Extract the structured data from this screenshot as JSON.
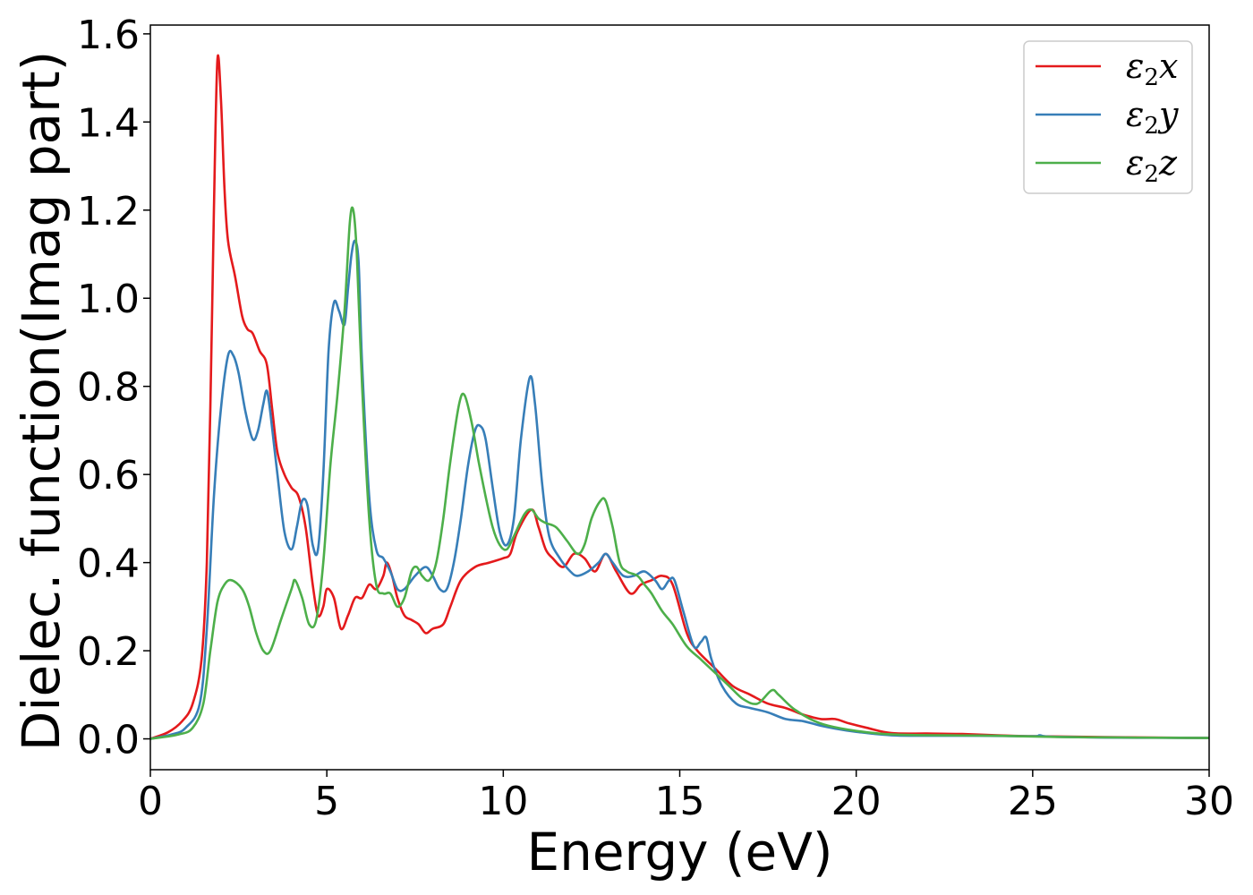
{
  "chart_data": {
    "type": "line",
    "xlabel": "Energy (eV)",
    "ylabel": "Dielec. function(Imag part)",
    "xlim": [
      0,
      30
    ],
    "ylim": [
      -0.07,
      1.62
    ],
    "xticks": [
      0,
      5,
      10,
      15,
      20,
      25,
      30
    ],
    "xtick_labels": [
      "0",
      "5",
      "10",
      "15",
      "20",
      "25",
      "30"
    ],
    "yticks": [
      0.0,
      0.2,
      0.4,
      0.6,
      0.8,
      1.0,
      1.2,
      1.4,
      1.6
    ],
    "ytick_labels": [
      "0.0",
      "0.2",
      "0.4",
      "0.6",
      "0.8",
      "1.0",
      "1.2",
      "1.4",
      "1.6"
    ],
    "grid": false,
    "legend_position": "top-right",
    "series": [
      {
        "name": "ε₂x",
        "label_base": "ε",
        "label_sub": "2",
        "label_suffix": "x",
        "color": "#e41a1c",
        "points": [
          [
            0,
            0.0
          ],
          [
            0.5,
            0.015
          ],
          [
            0.9,
            0.04
          ],
          [
            1.2,
            0.08
          ],
          [
            1.45,
            0.18
          ],
          [
            1.6,
            0.4
          ],
          [
            1.7,
            0.75
          ],
          [
            1.8,
            1.2
          ],
          [
            1.9,
            1.54
          ],
          [
            2.0,
            1.45
          ],
          [
            2.1,
            1.25
          ],
          [
            2.2,
            1.13
          ],
          [
            2.4,
            1.05
          ],
          [
            2.6,
            0.96
          ],
          [
            2.75,
            0.93
          ],
          [
            2.9,
            0.92
          ],
          [
            3.1,
            0.88
          ],
          [
            3.3,
            0.85
          ],
          [
            3.45,
            0.75
          ],
          [
            3.6,
            0.65
          ],
          [
            3.8,
            0.6
          ],
          [
            4.0,
            0.57
          ],
          [
            4.2,
            0.55
          ],
          [
            4.4,
            0.48
          ],
          [
            4.6,
            0.35
          ],
          [
            4.75,
            0.28
          ],
          [
            4.9,
            0.3
          ],
          [
            5.0,
            0.34
          ],
          [
            5.2,
            0.32
          ],
          [
            5.4,
            0.25
          ],
          [
            5.6,
            0.28
          ],
          [
            5.8,
            0.32
          ],
          [
            6.0,
            0.32
          ],
          [
            6.2,
            0.35
          ],
          [
            6.4,
            0.34
          ],
          [
            6.6,
            0.37
          ],
          [
            6.7,
            0.4
          ],
          [
            6.85,
            0.37
          ],
          [
            7.0,
            0.32
          ],
          [
            7.2,
            0.28
          ],
          [
            7.4,
            0.27
          ],
          [
            7.6,
            0.26
          ],
          [
            7.8,
            0.24
          ],
          [
            8.0,
            0.25
          ],
          [
            8.3,
            0.26
          ],
          [
            8.5,
            0.3
          ],
          [
            8.8,
            0.36
          ],
          [
            9.2,
            0.39
          ],
          [
            9.6,
            0.4
          ],
          [
            10.0,
            0.41
          ],
          [
            10.2,
            0.42
          ],
          [
            10.4,
            0.47
          ],
          [
            10.8,
            0.52
          ],
          [
            11.0,
            0.48
          ],
          [
            11.2,
            0.43
          ],
          [
            11.4,
            0.41
          ],
          [
            11.7,
            0.39
          ],
          [
            12.0,
            0.42
          ],
          [
            12.3,
            0.41
          ],
          [
            12.6,
            0.38
          ],
          [
            12.9,
            0.42
          ],
          [
            13.2,
            0.38
          ],
          [
            13.6,
            0.33
          ],
          [
            13.9,
            0.35
          ],
          [
            14.2,
            0.36
          ],
          [
            14.5,
            0.37
          ],
          [
            14.8,
            0.35
          ],
          [
            15.2,
            0.24
          ],
          [
            15.5,
            0.2
          ],
          [
            16.0,
            0.16
          ],
          [
            16.5,
            0.12
          ],
          [
            17.0,
            0.1
          ],
          [
            17.5,
            0.08
          ],
          [
            18.0,
            0.07
          ],
          [
            18.5,
            0.055
          ],
          [
            19.0,
            0.045
          ],
          [
            19.4,
            0.045
          ],
          [
            19.8,
            0.035
          ],
          [
            20.3,
            0.025
          ],
          [
            21.0,
            0.013
          ],
          [
            22.0,
            0.012
          ],
          [
            23.0,
            0.011
          ],
          [
            24.0,
            0.008
          ],
          [
            25.0,
            0.006
          ],
          [
            27.0,
            0.004
          ],
          [
            30.0,
            0.002
          ]
        ]
      },
      {
        "name": "ε₂y",
        "label_base": "ε",
        "label_sub": "2",
        "label_suffix": "y",
        "color": "#377eb8",
        "points": [
          [
            0,
            0.0
          ],
          [
            0.6,
            0.01
          ],
          [
            1.0,
            0.025
          ],
          [
            1.4,
            0.08
          ],
          [
            1.6,
            0.25
          ],
          [
            1.8,
            0.55
          ],
          [
            2.0,
            0.75
          ],
          [
            2.2,
            0.87
          ],
          [
            2.35,
            0.87
          ],
          [
            2.5,
            0.83
          ],
          [
            2.7,
            0.74
          ],
          [
            2.9,
            0.68
          ],
          [
            3.05,
            0.7
          ],
          [
            3.2,
            0.76
          ],
          [
            3.3,
            0.79
          ],
          [
            3.4,
            0.74
          ],
          [
            3.6,
            0.6
          ],
          [
            3.8,
            0.47
          ],
          [
            4.0,
            0.43
          ],
          [
            4.15,
            0.48
          ],
          [
            4.3,
            0.54
          ],
          [
            4.45,
            0.53
          ],
          [
            4.6,
            0.44
          ],
          [
            4.75,
            0.43
          ],
          [
            4.9,
            0.6
          ],
          [
            5.05,
            0.88
          ],
          [
            5.2,
            0.99
          ],
          [
            5.35,
            0.97
          ],
          [
            5.5,
            0.94
          ],
          [
            5.6,
            1.02
          ],
          [
            5.7,
            1.1
          ],
          [
            5.8,
            1.13
          ],
          [
            5.9,
            1.08
          ],
          [
            6.0,
            0.85
          ],
          [
            6.2,
            0.55
          ],
          [
            6.4,
            0.43
          ],
          [
            6.6,
            0.41
          ],
          [
            6.8,
            0.38
          ],
          [
            7.0,
            0.34
          ],
          [
            7.2,
            0.34
          ],
          [
            7.5,
            0.37
          ],
          [
            7.8,
            0.39
          ],
          [
            8.0,
            0.37
          ],
          [
            8.2,
            0.34
          ],
          [
            8.4,
            0.34
          ],
          [
            8.6,
            0.4
          ],
          [
            8.8,
            0.5
          ],
          [
            9.0,
            0.62
          ],
          [
            9.2,
            0.7
          ],
          [
            9.35,
            0.71
          ],
          [
            9.5,
            0.68
          ],
          [
            9.7,
            0.57
          ],
          [
            9.9,
            0.47
          ],
          [
            10.1,
            0.44
          ],
          [
            10.3,
            0.5
          ],
          [
            10.5,
            0.68
          ],
          [
            10.75,
            0.82
          ],
          [
            10.9,
            0.76
          ],
          [
            11.1,
            0.58
          ],
          [
            11.3,
            0.46
          ],
          [
            11.6,
            0.41
          ],
          [
            11.9,
            0.38
          ],
          [
            12.1,
            0.37
          ],
          [
            12.4,
            0.38
          ],
          [
            12.7,
            0.4
          ],
          [
            12.9,
            0.42
          ],
          [
            13.1,
            0.4
          ],
          [
            13.4,
            0.37
          ],
          [
            13.7,
            0.37
          ],
          [
            14.0,
            0.38
          ],
          [
            14.3,
            0.36
          ],
          [
            14.5,
            0.34
          ],
          [
            14.7,
            0.36
          ],
          [
            14.85,
            0.36
          ],
          [
            15.1,
            0.29
          ],
          [
            15.4,
            0.21
          ],
          [
            15.6,
            0.22
          ],
          [
            15.75,
            0.23
          ],
          [
            15.9,
            0.18
          ],
          [
            16.2,
            0.12
          ],
          [
            16.6,
            0.08
          ],
          [
            17.0,
            0.07
          ],
          [
            17.5,
            0.06
          ],
          [
            18.0,
            0.045
          ],
          [
            18.5,
            0.04
          ],
          [
            19.0,
            0.03
          ],
          [
            19.5,
            0.022
          ],
          [
            20.0,
            0.016
          ],
          [
            21.0,
            0.008
          ],
          [
            22.0,
            0.007
          ],
          [
            23.5,
            0.007
          ],
          [
            25.0,
            0.006
          ],
          [
            25.2,
            0.008
          ],
          [
            25.5,
            0.005
          ],
          [
            27.0,
            0.003
          ],
          [
            30.0,
            0.002
          ]
        ]
      },
      {
        "name": "ε₂z",
        "label_base": "ε",
        "label_sub": "2",
        "label_suffix": "z",
        "color": "#4daf4a",
        "points": [
          [
            0,
            0.0
          ],
          [
            0.8,
            0.01
          ],
          [
            1.2,
            0.025
          ],
          [
            1.5,
            0.08
          ],
          [
            1.7,
            0.2
          ],
          [
            1.9,
            0.31
          ],
          [
            2.1,
            0.35
          ],
          [
            2.3,
            0.36
          ],
          [
            2.6,
            0.34
          ],
          [
            2.8,
            0.3
          ],
          [
            3.0,
            0.24
          ],
          [
            3.2,
            0.2
          ],
          [
            3.4,
            0.2
          ],
          [
            3.7,
            0.27
          ],
          [
            4.0,
            0.34
          ],
          [
            4.1,
            0.36
          ],
          [
            4.3,
            0.32
          ],
          [
            4.5,
            0.26
          ],
          [
            4.7,
            0.27
          ],
          [
            4.9,
            0.4
          ],
          [
            5.1,
            0.62
          ],
          [
            5.3,
            0.78
          ],
          [
            5.5,
            0.97
          ],
          [
            5.65,
            1.17
          ],
          [
            5.75,
            1.2
          ],
          [
            5.85,
            1.1
          ],
          [
            6.0,
            0.8
          ],
          [
            6.2,
            0.5
          ],
          [
            6.4,
            0.35
          ],
          [
            6.6,
            0.33
          ],
          [
            6.8,
            0.33
          ],
          [
            7.0,
            0.3
          ],
          [
            7.2,
            0.32
          ],
          [
            7.4,
            0.38
          ],
          [
            7.55,
            0.39
          ],
          [
            7.7,
            0.37
          ],
          [
            7.9,
            0.36
          ],
          [
            8.1,
            0.4
          ],
          [
            8.3,
            0.5
          ],
          [
            8.5,
            0.63
          ],
          [
            8.75,
            0.76
          ],
          [
            8.9,
            0.78
          ],
          [
            9.1,
            0.72
          ],
          [
            9.3,
            0.63
          ],
          [
            9.5,
            0.55
          ],
          [
            9.7,
            0.48
          ],
          [
            9.9,
            0.44
          ],
          [
            10.1,
            0.43
          ],
          [
            10.3,
            0.46
          ],
          [
            10.6,
            0.51
          ],
          [
            10.8,
            0.52
          ],
          [
            11.0,
            0.5
          ],
          [
            11.2,
            0.49
          ],
          [
            11.5,
            0.48
          ],
          [
            11.8,
            0.45
          ],
          [
            12.1,
            0.42
          ],
          [
            12.3,
            0.44
          ],
          [
            12.5,
            0.5
          ],
          [
            12.75,
            0.54
          ],
          [
            12.9,
            0.54
          ],
          [
            13.1,
            0.48
          ],
          [
            13.3,
            0.4
          ],
          [
            13.5,
            0.38
          ],
          [
            13.8,
            0.37
          ],
          [
            14.0,
            0.35
          ],
          [
            14.2,
            0.33
          ],
          [
            14.5,
            0.29
          ],
          [
            14.8,
            0.26
          ],
          [
            15.2,
            0.21
          ],
          [
            15.6,
            0.18
          ],
          [
            16.0,
            0.15
          ],
          [
            16.4,
            0.12
          ],
          [
            16.8,
            0.09
          ],
          [
            17.2,
            0.08
          ],
          [
            17.6,
            0.11
          ],
          [
            17.8,
            0.1
          ],
          [
            18.2,
            0.07
          ],
          [
            18.7,
            0.045
          ],
          [
            19.2,
            0.03
          ],
          [
            20.0,
            0.018
          ],
          [
            21.0,
            0.01
          ],
          [
            22.5,
            0.008
          ],
          [
            24.0,
            0.007
          ],
          [
            26.0,
            0.004
          ],
          [
            30.0,
            0.002
          ]
        ]
      }
    ]
  }
}
